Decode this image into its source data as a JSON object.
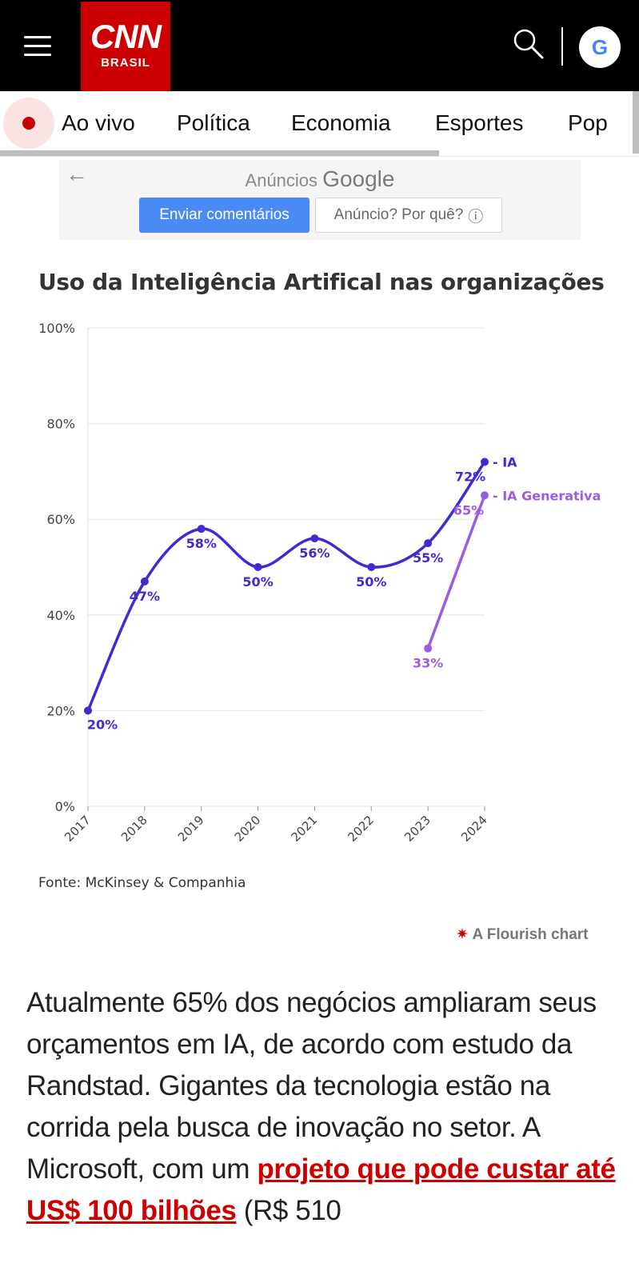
{
  "header": {
    "logo_top": "CNN",
    "logo_bottom": "BRASIL",
    "google_letter": "G"
  },
  "nav": {
    "items": [
      "Ao vivo",
      "Política",
      "Economia",
      "Esportes",
      "Pop"
    ]
  },
  "ad": {
    "back_symbol": "←",
    "label": "Anúncios",
    "brand": "Google",
    "feedback_button": "Enviar comentários",
    "why_button": "Anúncio? Por quê?",
    "info_symbol": "ⓘ"
  },
  "colors": {
    "header_bg": "#000000",
    "brand_red": "#cc0000",
    "series_ia": "#3f2bd0",
    "series_genai": "#9b5ce0",
    "link_red": "#cc0000"
  },
  "chart_data": {
    "type": "line",
    "title": "Uso da Inteligência Artifical nas organizações",
    "source": "Fonte: McKinsey & Companhia",
    "credit": "A Flourish chart",
    "x": [
      "2017",
      "2018",
      "2019",
      "2020",
      "2021",
      "2022",
      "2023",
      "2024"
    ],
    "ylim": [
      0,
      100
    ],
    "yticks": [
      "0%",
      "20%",
      "40%",
      "60%",
      "80%",
      "100%"
    ],
    "grid": true,
    "series": [
      {
        "name": "IA",
        "values": [
          20,
          47,
          58,
          50,
          56,
          50,
          55,
          72
        ],
        "labels": [
          "20%",
          "47%",
          "58%",
          "50%",
          "56%",
          "50%",
          "55%",
          "72%"
        ]
      },
      {
        "name": "IA Generativa",
        "values": [
          null,
          null,
          null,
          null,
          null,
          null,
          33,
          65
        ],
        "labels": [
          "",
          "",
          "",
          "",
          "",
          "",
          "33%",
          "65%"
        ]
      }
    ]
  },
  "article": {
    "text_before": "Atualmente 65% dos negócios ampliaram seus orçamentos em IA, de acordo com estudo da Randstad. Gigantes da tecnologia estão na corrida pela busca de inovação no setor. A Microsoft, com um ",
    "link_text": "projeto que pode custar até US$ 100 bilhões",
    "text_after": " (R$ 510"
  }
}
